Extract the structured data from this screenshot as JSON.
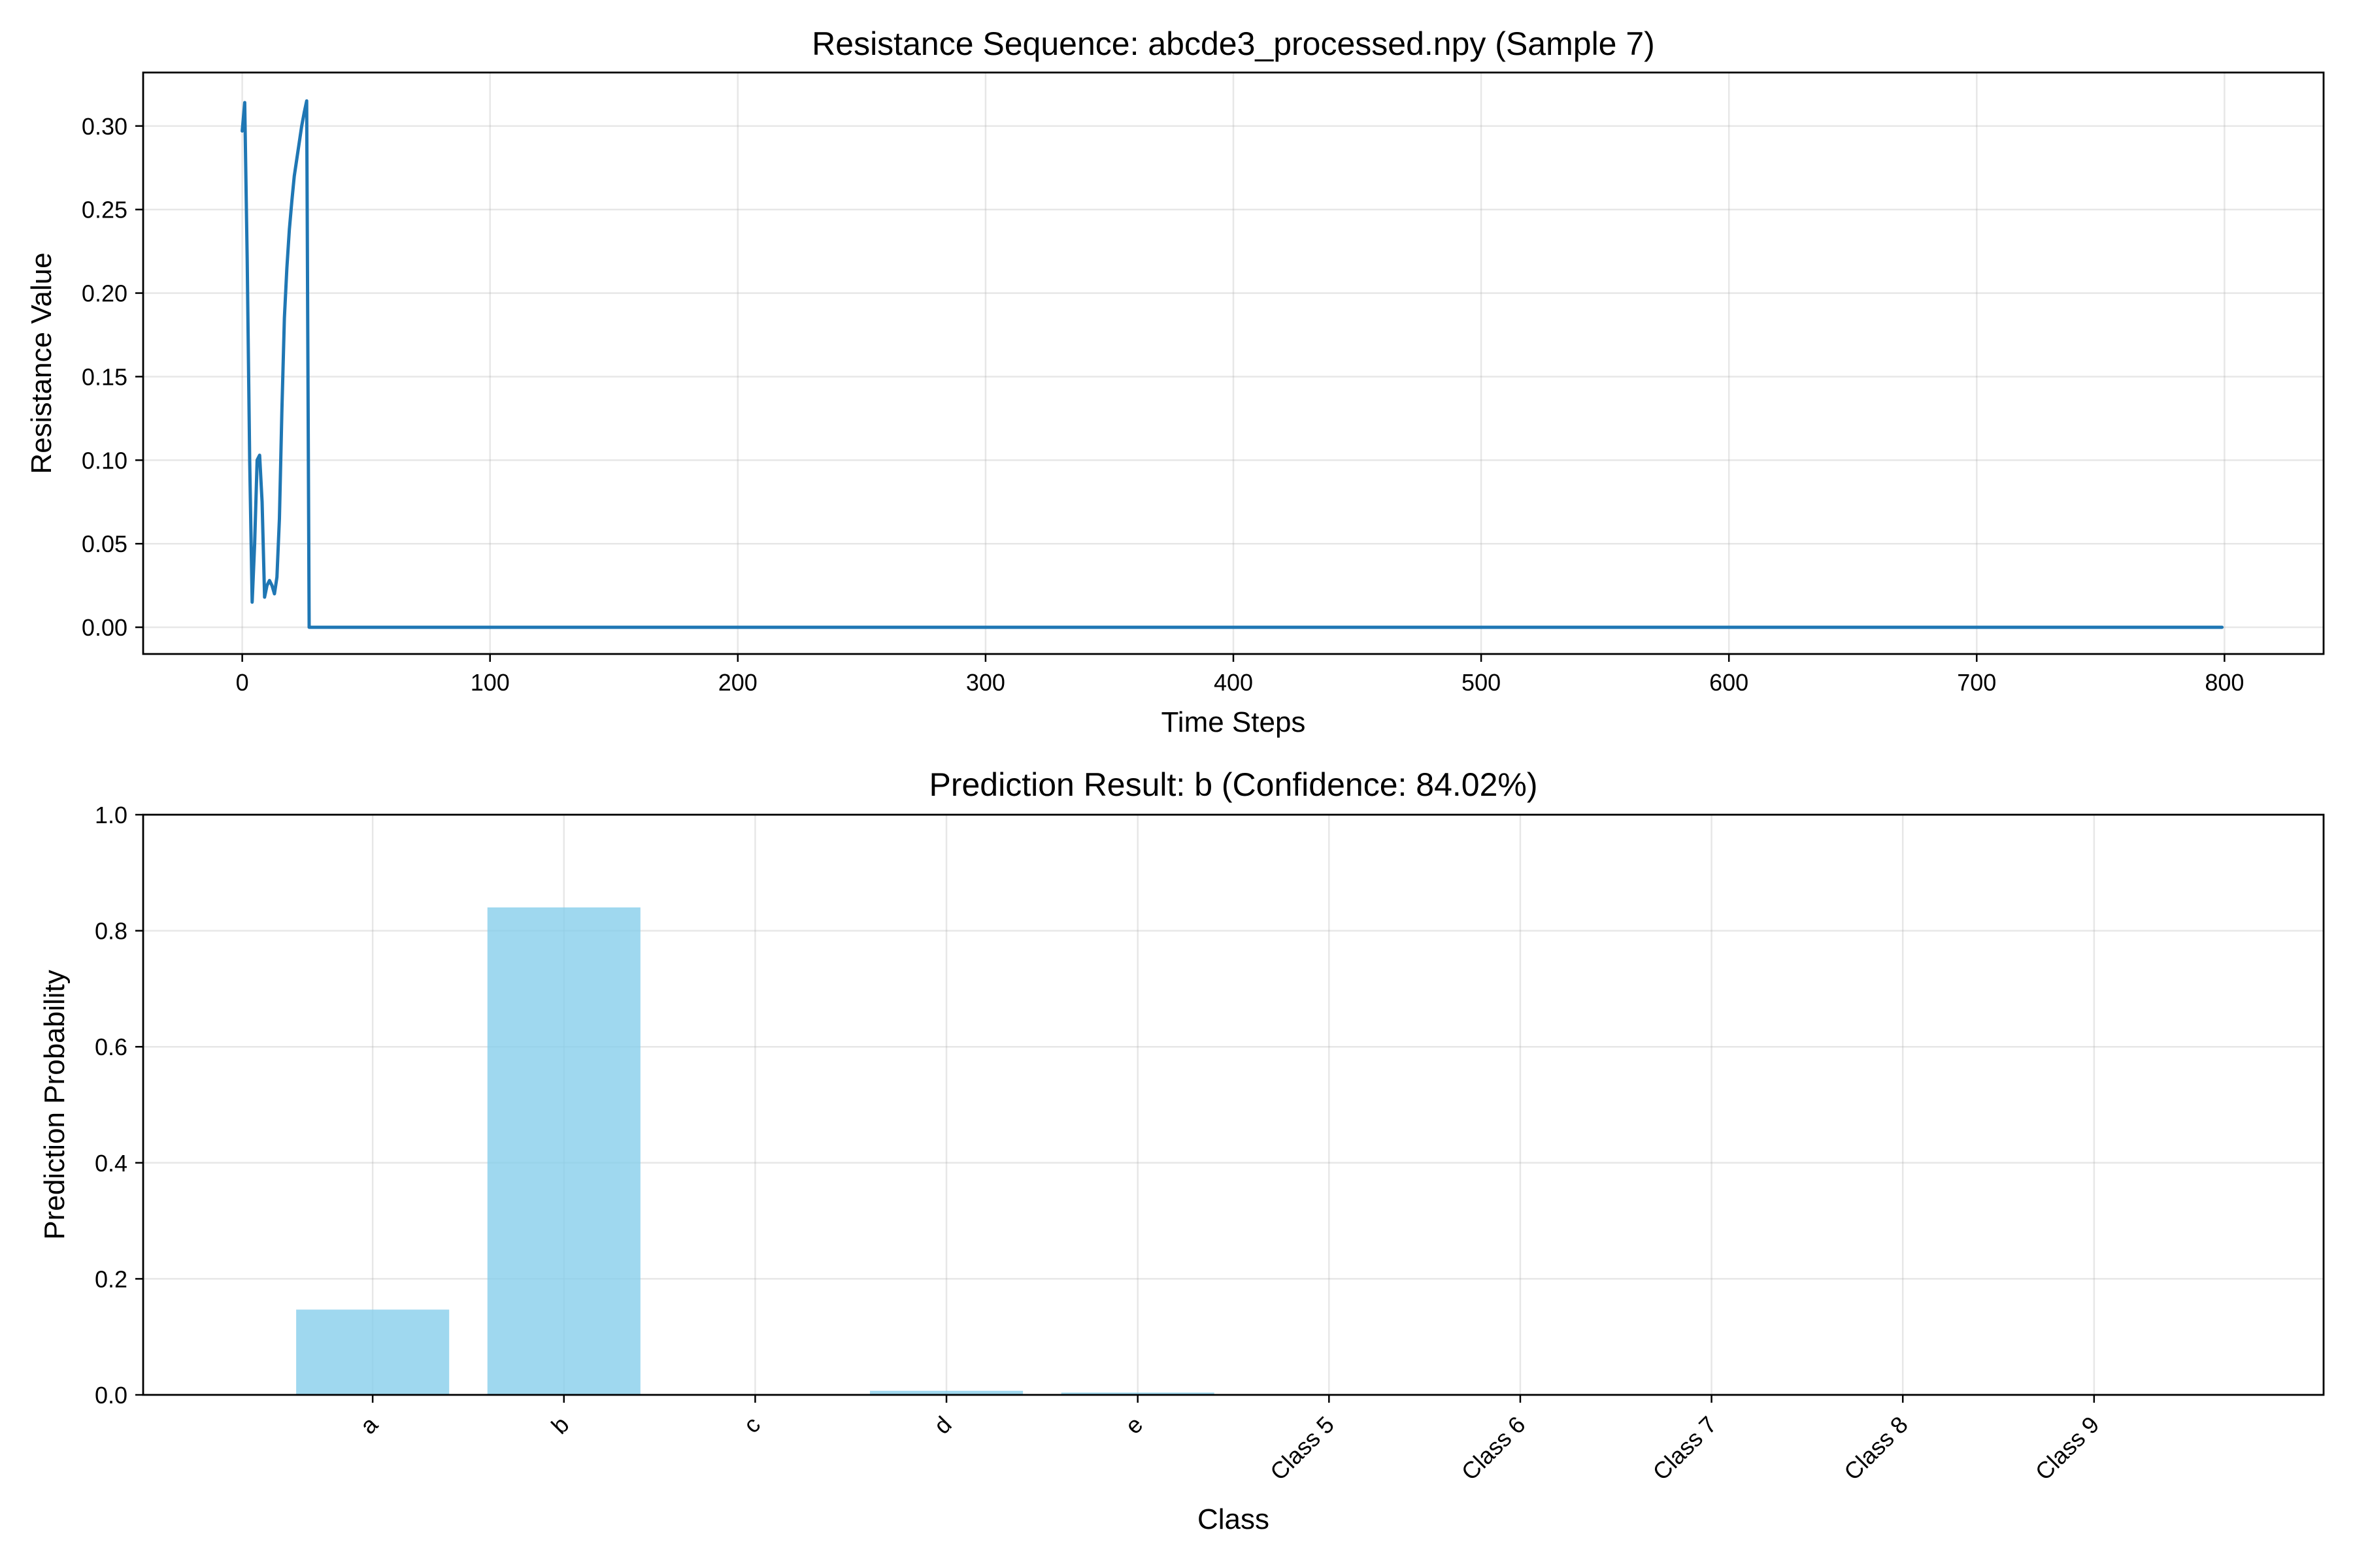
{
  "chart_data": [
    {
      "type": "line",
      "title": "Resistance Sequence: abcde3_processed.npy (Sample 7)",
      "xlabel": "Time Steps",
      "ylabel": "Resistance Value",
      "xlim": [
        -40,
        840
      ],
      "ylim": [
        -0.016,
        0.332
      ],
      "xticks": [
        0,
        100,
        200,
        300,
        400,
        500,
        600,
        700,
        800
      ],
      "xtick_labels": [
        "0",
        "100",
        "200",
        "300",
        "400",
        "500",
        "600",
        "700",
        "800"
      ],
      "yticks": [
        0.0,
        0.05,
        0.1,
        0.15,
        0.2,
        0.25,
        0.3
      ],
      "ytick_labels": [
        "0.00",
        "0.05",
        "0.10",
        "0.15",
        "0.20",
        "0.25",
        "0.30"
      ],
      "grid": true,
      "color": "#1f77b4",
      "series": [
        {
          "x": [
            0,
            1,
            2,
            3,
            4,
            5,
            6,
            7,
            8,
            9,
            10,
            11,
            12,
            13,
            14,
            15,
            16,
            17,
            18,
            19,
            20,
            21,
            22,
            23,
            24,
            25,
            26,
            27,
            28,
            29,
            30,
            31,
            32,
            33,
            100,
            200,
            300,
            400,
            500,
            600,
            700,
            799
          ],
          "y": [
            0.297,
            0.314,
            0.22,
            0.1,
            0.015,
            0.05,
            0.1,
            0.103,
            0.075,
            0.018,
            0.025,
            0.028,
            0.025,
            0.02,
            0.03,
            0.065,
            0.13,
            0.185,
            0.215,
            0.238,
            0.255,
            0.27,
            0.28,
            0.29,
            0.3,
            0.308,
            0.315,
            0.0,
            0.0,
            0.0,
            0.0,
            0.0,
            0.0,
            0.0,
            0.0,
            0.0,
            0.0,
            0.0,
            0.0,
            0.0,
            0.0,
            0.0
          ]
        }
      ]
    },
    {
      "type": "bar",
      "title": "Prediction Result: b (Confidence: 84.02%)",
      "xlabel": "Class",
      "ylabel": "Prediction Probability",
      "ylim": [
        0,
        1.0
      ],
      "yticks": [
        0.0,
        0.2,
        0.4,
        0.6,
        0.8,
        1.0
      ],
      "ytick_labels": [
        "0.0",
        "0.2",
        "0.4",
        "0.6",
        "0.8",
        "1.0"
      ],
      "grid": true,
      "color": "#87ceeb",
      "categories": [
        "a",
        "b",
        "c",
        "d",
        "e",
        "Class 5",
        "Class 6",
        "Class 7",
        "Class 8",
        "Class 9"
      ],
      "values": [
        0.147,
        0.8402,
        0.001,
        0.007,
        0.004,
        0.0,
        0.0,
        0.0,
        0.0,
        0.0
      ]
    }
  ]
}
